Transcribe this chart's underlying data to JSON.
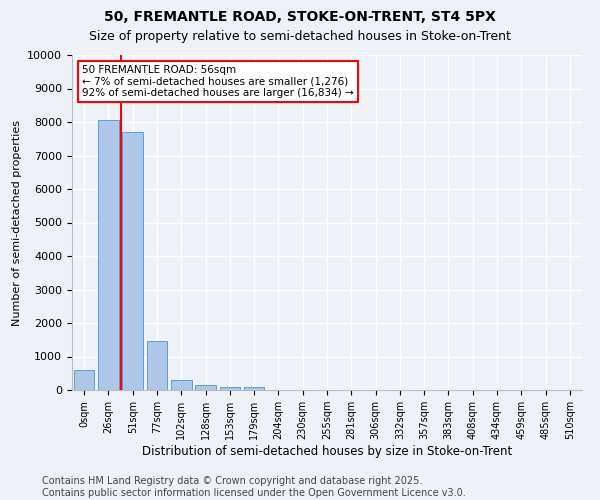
{
  "title": "50, FREMANTLE ROAD, STOKE-ON-TRENT, ST4 5PX",
  "subtitle": "Size of property relative to semi-detached houses in Stoke-on-Trent",
  "xlabel": "Distribution of semi-detached houses by size in Stoke-on-Trent",
  "ylabel": "Number of semi-detached properties",
  "bar_labels": [
    "0sqm",
    "26sqm",
    "51sqm",
    "77sqm",
    "102sqm",
    "128sqm",
    "153sqm",
    "179sqm",
    "204sqm",
    "230sqm",
    "255sqm",
    "281sqm",
    "306sqm",
    "332sqm",
    "357sqm",
    "383sqm",
    "408sqm",
    "434sqm",
    "459sqm",
    "485sqm",
    "510sqm"
  ],
  "bar_values": [
    600,
    8050,
    7700,
    1450,
    290,
    140,
    80,
    80,
    0,
    0,
    0,
    0,
    0,
    0,
    0,
    0,
    0,
    0,
    0,
    0,
    0
  ],
  "bar_color": "#aec6e8",
  "bar_edgecolor": "#5a9fd4",
  "ylim": [
    0,
    10000
  ],
  "yticks": [
    0,
    1000,
    2000,
    3000,
    4000,
    5000,
    6000,
    7000,
    8000,
    9000,
    10000
  ],
  "property_line_x": 2,
  "property_line_color": "red",
  "annotation_title": "50 FREMANTLE ROAD: 56sqm",
  "annotation_line1": "← 7% of semi-detached houses are smaller (1,276)",
  "annotation_line2": "92% of semi-detached houses are larger (16,834) →",
  "annotation_box_color": "white",
  "annotation_box_edgecolor": "red",
  "footer_line1": "Contains HM Land Registry data © Crown copyright and database right 2025.",
  "footer_line2": "Contains public sector information licensed under the Open Government Licence v3.0.",
  "background_color": "#eef2f8",
  "plot_background": "#eef2f8",
  "grid_color": "#ffffff",
  "title_fontsize": 10,
  "subtitle_fontsize": 9,
  "footer_fontsize": 7
}
